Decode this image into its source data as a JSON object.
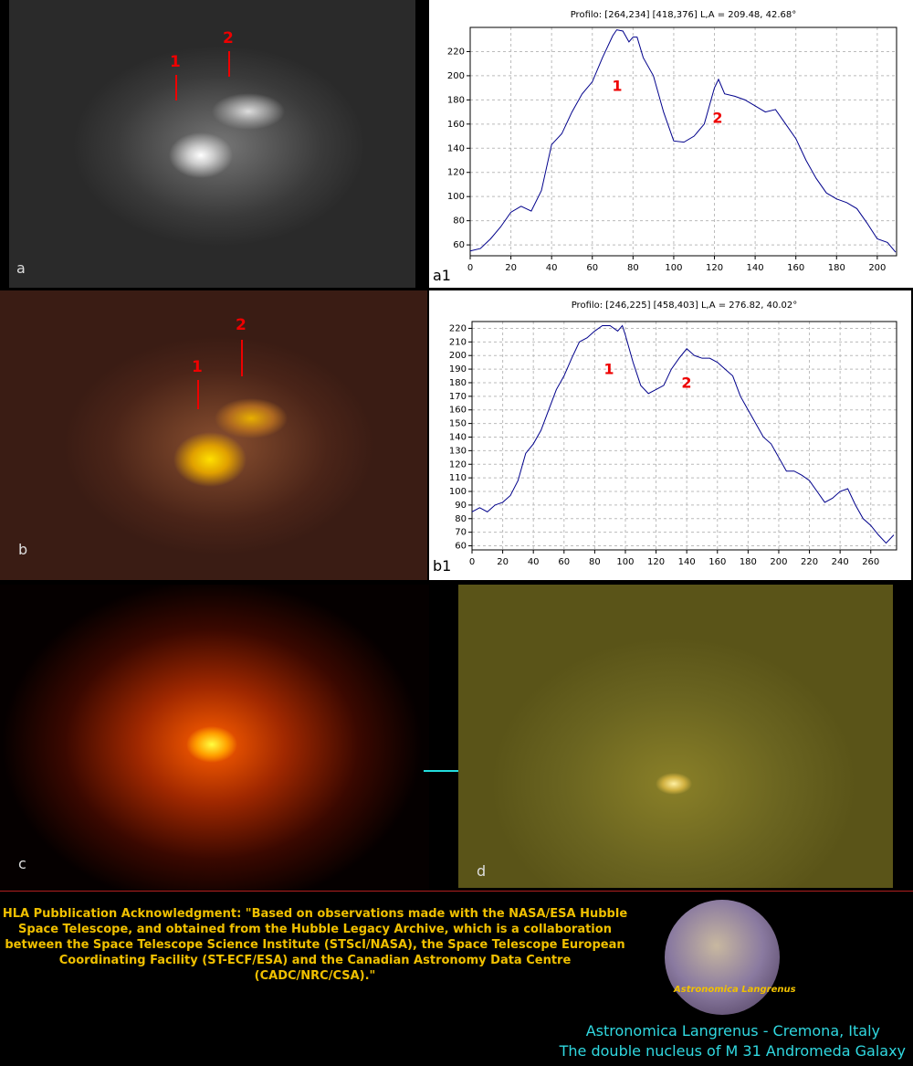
{
  "chart_data": [
    {
      "type": "line",
      "title": "Profilo: [264,234] [418,376] L,A = 209.48, 42.68°",
      "color": "#00008b",
      "grid": true,
      "x": [
        0,
        5,
        10,
        15,
        20,
        25,
        30,
        35,
        40,
        45,
        50,
        55,
        60,
        65,
        70,
        72,
        75,
        78,
        80,
        82,
        85,
        90,
        95,
        100,
        105,
        110,
        115,
        120,
        122,
        125,
        130,
        135,
        140,
        145,
        150,
        155,
        160,
        165,
        170,
        175,
        180,
        185,
        190,
        195,
        200,
        205,
        209
      ],
      "values": [
        55,
        57,
        65,
        75,
        87,
        92,
        88,
        105,
        143,
        152,
        170,
        185,
        195,
        215,
        233,
        238,
        237,
        228,
        232,
        232,
        215,
        200,
        170,
        146,
        145,
        150,
        160,
        190,
        197,
        185,
        183,
        180,
        175,
        170,
        172,
        160,
        148,
        130,
        115,
        103,
        98,
        95,
        90,
        78,
        65,
        62,
        54
      ],
      "xlim": [
        0,
        209.48
      ],
      "xticks": [
        0,
        20,
        40,
        60,
        80,
        100,
        120,
        140,
        160,
        180,
        200
      ],
      "ylim": [
        51,
        240
      ],
      "yticks": [
        60,
        80,
        100,
        120,
        140,
        160,
        180,
        200,
        220
      ],
      "annotations": [
        "1",
        "2"
      ]
    },
    {
      "type": "line",
      "title": "Profilo: [246,225] [458,403] L,A = 276.82, 40.02°",
      "color": "#00008b",
      "grid": true,
      "x": [
        0,
        5,
        10,
        15,
        20,
        25,
        30,
        35,
        40,
        45,
        50,
        55,
        60,
        65,
        70,
        75,
        80,
        85,
        90,
        95,
        98,
        100,
        105,
        110,
        115,
        120,
        125,
        130,
        135,
        140,
        145,
        150,
        155,
        160,
        165,
        170,
        175,
        180,
        185,
        190,
        195,
        200,
        205,
        210,
        215,
        220,
        225,
        230,
        235,
        240,
        245,
        250,
        255,
        260,
        265,
        270,
        275
      ],
      "values": [
        85,
        88,
        85,
        90,
        92,
        97,
        108,
        128,
        135,
        145,
        160,
        175,
        185,
        198,
        210,
        213,
        218,
        222,
        222,
        218,
        222,
        215,
        195,
        178,
        172,
        175,
        178,
        190,
        198,
        205,
        200,
        198,
        198,
        195,
        190,
        185,
        170,
        160,
        150,
        140,
        135,
        125,
        115,
        115,
        112,
        108,
        100,
        92,
        95,
        100,
        102,
        90,
        80,
        75,
        68,
        62,
        68
      ],
      "xlim": [
        0,
        276.82
      ],
      "xticks": [
        0,
        20,
        40,
        60,
        80,
        100,
        120,
        140,
        160,
        180,
        200,
        220,
        240,
        260
      ],
      "ylim": [
        57,
        225
      ],
      "yticks": [
        60,
        70,
        80,
        90,
        100,
        110,
        120,
        130,
        140,
        150,
        160,
        170,
        180,
        190,
        200,
        210,
        220
      ],
      "annotations": [
        "1",
        "2"
      ]
    }
  ],
  "panel_labels": [
    "a",
    "a1",
    "b",
    "b1",
    "c",
    "d"
  ],
  "image_markers": [
    "1",
    "2"
  ],
  "acknowledgment": "HLA Pubblication Acknowledgment: \"Based on observations made with the NASA/ESA Hubble Space Telescope, and obtained from the Hubble Legacy Archive, which is a collaboration between the Space Telescope Science Institute (STScI/NASA), the Space Telescope European Coordinating Facility (ST-ECF/ESA) and the Canadian Astronomy Data Centre (CADC/NRC/CSA).\"",
  "logo_text": "Astronomica Langrenus",
  "credits": [
    "Astronomica Langrenus - Cremona, Italy",
    "The double nucleus of M 31 Andromeda Galaxy"
  ]
}
